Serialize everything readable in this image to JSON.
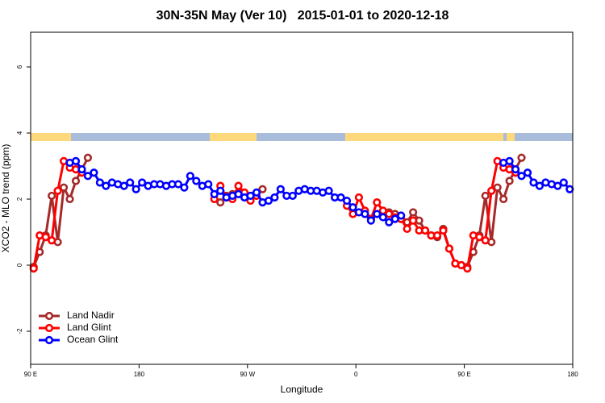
{
  "chart_data": {
    "type": "line",
    "title": "30N-35N May (Ver 10)   2015-01-01 to 2020-12-18",
    "xlabel": "Longitude",
    "ylabel": "XCO2 - MLO trend (ppm)",
    "xlim": [
      90,
      540
    ],
    "xticks": [
      {
        "value": 90,
        "label": "90 E"
      },
      180,
      {
        "value": 270,
        "label": "90 W"
      },
      {
        "value": 360,
        "label": "0"
      },
      {
        "value": 450,
        "label": "90 E"
      },
      {
        "value": 540,
        "label": "180"
      }
    ],
    "ylim": [
      -3,
      7.05
    ],
    "yticks": [
      -2,
      0,
      2,
      4,
      6
    ],
    "legend": "bottom-left",
    "x": [
      92.5,
      97.5,
      102.5,
      107.5,
      112.5,
      117.5,
      122.5,
      127.5,
      132.5,
      137.5,
      142.5,
      147.5,
      152.5,
      157.5,
      162.5,
      167.5,
      172.5,
      177.5,
      182.5,
      187.5,
      192.5,
      197.5,
      202.5,
      207.5,
      212.5,
      217.5,
      222.5,
      227.5,
      232.5,
      237.5,
      242.5,
      247.5,
      252.5,
      257.5,
      262.5,
      267.5,
      272.5,
      277.5,
      282.5,
      287.5,
      292.5,
      297.5,
      302.5,
      307.5,
      312.5,
      317.5,
      322.5,
      327.5,
      332.5,
      337.5,
      342.5,
      347.5,
      352.5,
      357.5,
      362.5,
      367.5,
      372.5,
      377.5,
      382.5,
      387.5,
      392.5,
      397.5,
      402.5,
      407.5,
      412.5,
      417.5,
      422.5,
      427.5,
      432.5,
      437.5,
      442.5,
      447.5,
      452.5,
      457.5,
      462.5,
      467.5,
      472.5,
      477.5,
      482.5,
      487.5,
      492.5,
      497.5,
      502.5,
      507.5,
      512.5,
      517.5,
      522.5,
      527.5,
      532.5,
      537.5
    ],
    "series": [
      {
        "name": "Land Nadir",
        "color": "#a52a2a",
        "values": [
          -0.05,
          0.4,
          0.9,
          2.1,
          0.7,
          2.35,
          2.0,
          2.55,
          2.9,
          3.25,
          null,
          null,
          null,
          null,
          null,
          null,
          null,
          null,
          null,
          null,
          null,
          null,
          null,
          null,
          null,
          null,
          null,
          null,
          null,
          null,
          null,
          1.9,
          2.1,
          2.15,
          2.2,
          2.1,
          2.05,
          2.1,
          2.3,
          null,
          null,
          null,
          null,
          null,
          null,
          null,
          null,
          null,
          null,
          null,
          null,
          null,
          null,
          null,
          null,
          null,
          null,
          null,
          null,
          1.6,
          1.55,
          1.4,
          1.3,
          1.6,
          1.35,
          1.05,
          0.9,
          0.85,
          1.1,
          0.5,
          0.05,
          0.0,
          -0.05,
          0.4,
          0.9,
          2.1,
          0.7,
          2.35,
          2.0,
          2.55,
          2.9,
          3.25,
          null,
          null,
          null,
          null,
          null,
          null,
          null,
          null
        ]
      },
      {
        "name": "Land Glint",
        "color": "#ff0000",
        "values": [
          -0.1,
          0.9,
          0.85,
          0.75,
          2.25,
          3.15,
          2.95,
          2.9,
          2.8,
          null,
          null,
          null,
          null,
          null,
          null,
          null,
          null,
          null,
          null,
          null,
          null,
          null,
          null,
          null,
          null,
          null,
          null,
          null,
          null,
          null,
          2.0,
          2.4,
          2.05,
          2.0,
          2.4,
          2.2,
          1.95,
          2.1,
          null,
          null,
          null,
          null,
          null,
          null,
          null,
          null,
          null,
          null,
          null,
          null,
          null,
          null,
          1.8,
          1.55,
          2.05,
          1.65,
          1.4,
          1.9,
          1.65,
          1.55,
          1.45,
          1.4,
          1.1,
          1.35,
          1.05,
          1.05,
          0.9,
          0.9,
          1.05,
          0.5,
          0.05,
          0.0,
          -0.1,
          0.9,
          0.85,
          0.75,
          2.25,
          3.15,
          2.95,
          2.9,
          2.8,
          null,
          null,
          null,
          null,
          null,
          null,
          null,
          null,
          null
        ]
      },
      {
        "name": "Ocean Glint",
        "color": "#0000ff",
        "values": [
          null,
          null,
          null,
          null,
          null,
          null,
          3.1,
          3.15,
          2.9,
          2.7,
          2.8,
          2.5,
          2.4,
          2.5,
          2.45,
          2.4,
          2.5,
          2.3,
          2.5,
          2.4,
          2.45,
          2.45,
          2.4,
          2.45,
          2.45,
          2.35,
          2.7,
          2.55,
          2.4,
          2.45,
          2.15,
          2.25,
          2.05,
          2.1,
          2.15,
          2.05,
          2.1,
          2.2,
          1.9,
          1.95,
          2.05,
          2.3,
          2.1,
          2.1,
          2.25,
          2.3,
          2.25,
          2.25,
          2.2,
          2.25,
          2.05,
          2.05,
          1.95,
          1.75,
          1.6,
          1.55,
          1.35,
          1.55,
          1.45,
          1.3,
          1.4,
          1.5,
          null,
          null,
          null,
          null,
          null,
          null,
          null,
          null,
          null,
          null,
          null,
          null,
          null,
          null,
          null,
          null,
          3.1,
          3.15,
          2.9,
          2.7,
          2.8,
          2.5,
          2.4,
          2.5,
          2.45,
          2.4,
          2.5,
          2.3
        ]
      }
    ]
  }
}
